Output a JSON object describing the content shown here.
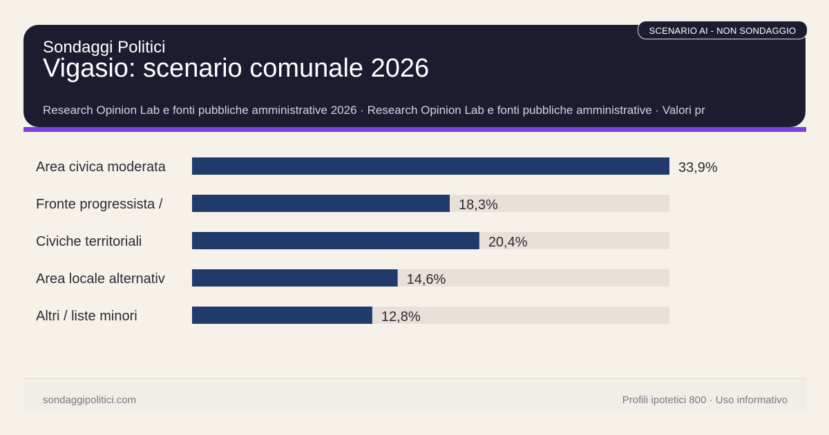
{
  "header": {
    "brand": "Sondaggi Politici",
    "title": "Vigasio: scenario comunale 2026",
    "subtitle": "Research Opinion Lab e fonti pubbliche amministrative 2026 · Research Opinion Lab e fonti pubbliche amministrative · Valori pr",
    "badge": "SCENARIO AI - NON SONDAGGIO"
  },
  "chart_data": {
    "type": "bar",
    "orientation": "horizontal",
    "categories": [
      "Area civica moderata",
      "Fronte progressista /",
      "Civiche territoriali",
      "Area locale alternativ",
      "Altri / liste minori"
    ],
    "values": [
      33.9,
      18.3,
      20.4,
      14.6,
      12.8
    ],
    "value_labels": [
      "33,9%",
      "18,3%",
      "20,4%",
      "14,6%",
      "12,8%"
    ],
    "xlim": [
      0,
      33.9
    ],
    "grid": false,
    "colors": {
      "bar": "#1f3a6b",
      "track": "#e8e1d9",
      "label": "#2a2a33"
    }
  },
  "footer": {
    "left": "sondaggipolitici.com",
    "right": "Profili ipotetici 800 · Uso informativo"
  }
}
